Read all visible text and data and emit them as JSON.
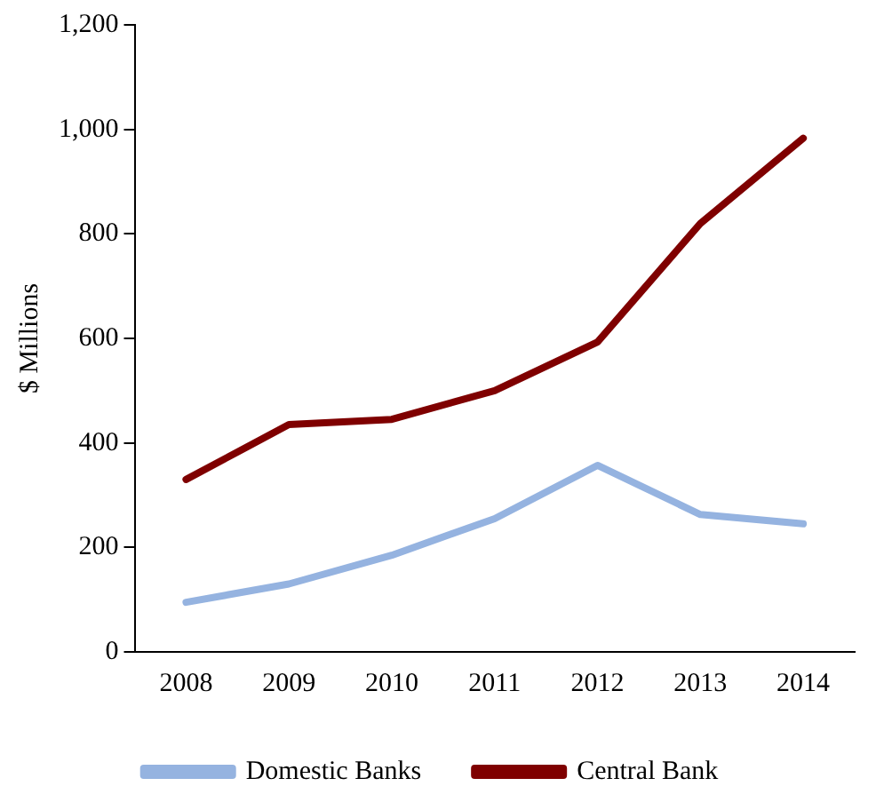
{
  "chart_data": {
    "type": "line",
    "ylabel": "$ Millions",
    "categories": [
      "2008",
      "2009",
      "2010",
      "2011",
      "2012",
      "2013",
      "2014"
    ],
    "series": [
      {
        "name": "Domestic Banks",
        "color": "#95b3e0",
        "values": [
          95,
          130,
          185,
          255,
          357,
          263,
          245
        ]
      },
      {
        "name": "Central Bank",
        "color": "#7f0000",
        "values": [
          330,
          435,
          445,
          500,
          593,
          820,
          983
        ]
      }
    ],
    "ylim": [
      0,
      1200
    ],
    "yticks": [
      {
        "value": 0,
        "label": "0"
      },
      {
        "value": 200,
        "label": "200"
      },
      {
        "value": 400,
        "label": "400"
      },
      {
        "value": 600,
        "label": "600"
      },
      {
        "value": 800,
        "label": "800"
      },
      {
        "value": 1000,
        "label": "1,000"
      },
      {
        "value": 1200,
        "label": "1,200"
      }
    ],
    "grid": false,
    "legend": "bottom",
    "marker": "none",
    "line_style": "solid"
  }
}
